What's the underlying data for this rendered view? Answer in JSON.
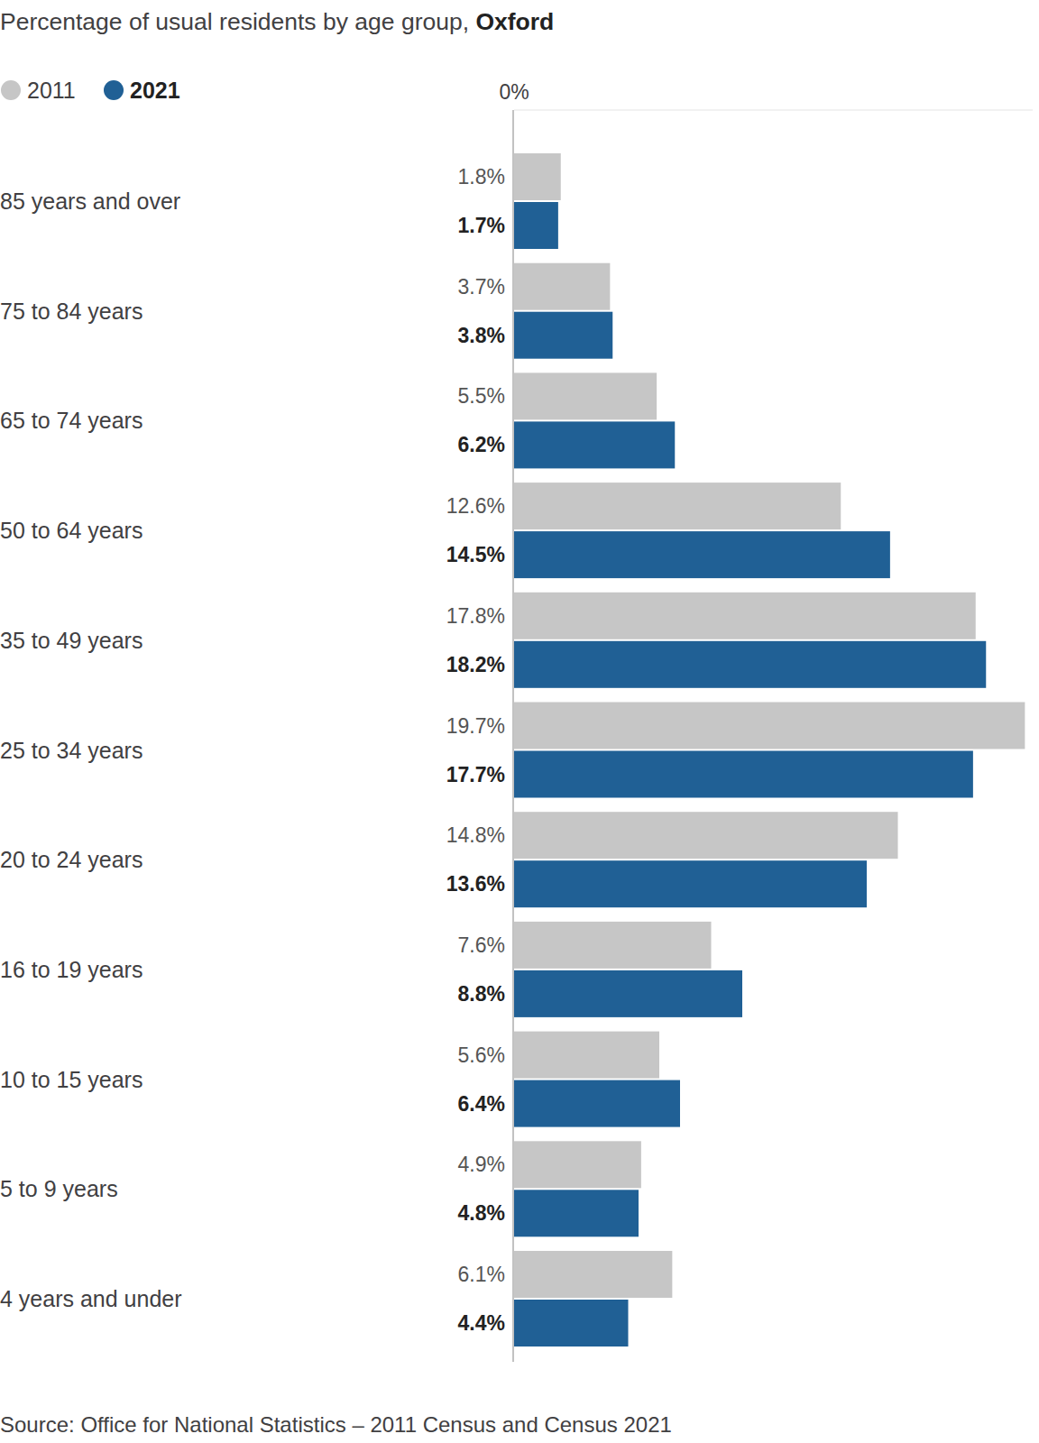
{
  "chart_data": {
    "type": "bar",
    "orientation": "horizontal",
    "title": "Percentage of usual residents by age group, Oxford",
    "categories": [
      "85 years and over",
      "75 to 84 years",
      "65 to 74 years",
      "50 to 64 years",
      "35 to 49 years",
      "25 to 34 years",
      "20 to 24 years",
      "16 to 19 years",
      "10 to 15 years",
      "5 to 9 years",
      "4 years and under"
    ],
    "series": [
      {
        "name": "2011",
        "color": "#c6c6c6",
        "values": [
          1.8,
          3.7,
          5.5,
          12.6,
          17.8,
          19.7,
          14.8,
          7.6,
          5.6,
          4.9,
          6.1
        ],
        "value_labels": [
          "1.8%",
          "3.7%",
          "5.5%",
          "12.6%",
          "17.8%",
          "19.7%",
          "14.8%",
          "7.6%",
          "5.6%",
          "4.9%",
          "6.1%"
        ]
      },
      {
        "name": "2021",
        "color": "#206095",
        "values": [
          1.7,
          3.8,
          6.2,
          14.5,
          18.2,
          17.7,
          13.6,
          8.8,
          6.4,
          4.8,
          4.4
        ],
        "value_labels": [
          "1.7%",
          "3.8%",
          "6.2%",
          "14.5%",
          "18.2%",
          "17.7%",
          "13.6%",
          "8.8%",
          "6.4%",
          "4.8%",
          "4.4%"
        ]
      }
    ],
    "xlim": [
      0,
      20
    ],
    "xticks": [
      {
        "value": 0,
        "label": "0%"
      }
    ],
    "data_labels": true,
    "legend": "top-left",
    "grid": false,
    "source": "Source: Office for National Statistics – 2011 Census and Census 2021"
  }
}
